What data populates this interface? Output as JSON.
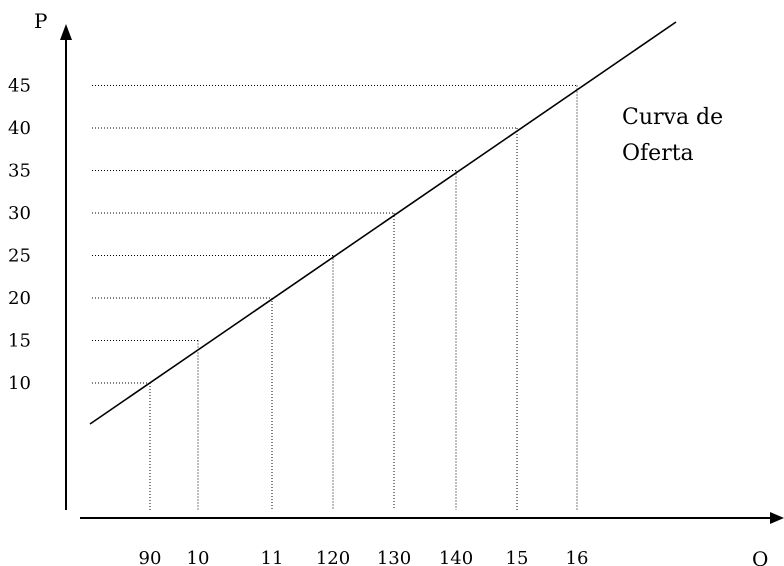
{
  "chart_data": {
    "type": "line",
    "title": "",
    "xlabel": "Q",
    "ylabel": "P",
    "annotation": "Curva de\nOferta",
    "y_ticks": [
      "10",
      "15",
      "20",
      "25",
      "30",
      "35",
      "40",
      "45"
    ],
    "x_ticks": [
      "90",
      "10",
      "11",
      "120",
      "130",
      "140",
      "15",
      "16"
    ],
    "points": [
      {
        "p": 10,
        "q_label": "90"
      },
      {
        "p": 15,
        "q_label": "10"
      },
      {
        "p": 20,
        "q_label": "11"
      },
      {
        "p": 25,
        "q_label": "120"
      },
      {
        "p": 30,
        "q_label": "130"
      },
      {
        "p": 35,
        "q_label": "140"
      },
      {
        "p": 40,
        "q_label": "15"
      },
      {
        "p": 45,
        "q_label": "16"
      }
    ],
    "ylim": [
      0,
      50
    ],
    "grid": false,
    "colors": {
      "line": "#000000",
      "axes": "#000000"
    }
  }
}
